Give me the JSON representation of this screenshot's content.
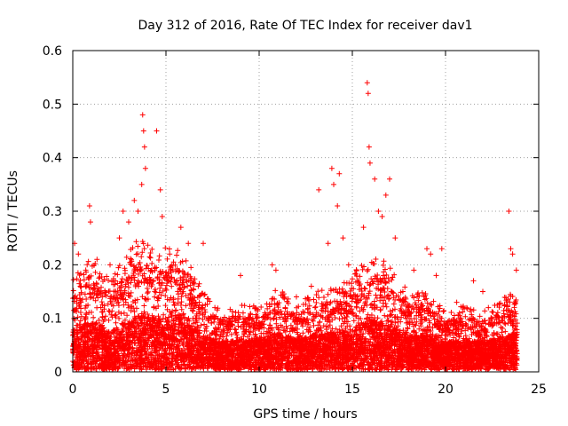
{
  "chart_data": {
    "type": "scatter",
    "title": "Day 312 of 2016, Rate Of TEC Index for receiver dav1",
    "xlabel": "GPS time / hours",
    "ylabel": "ROTI / TECUs",
    "xlim": [
      0,
      25
    ],
    "ylim": [
      0,
      0.6
    ],
    "xticks": [
      0,
      5,
      10,
      15,
      20,
      25
    ],
    "yticks": [
      0,
      0.1,
      0.2,
      0.3,
      0.4,
      0.5,
      0.6
    ],
    "grid": true,
    "marker": "+",
    "marker_color": "#ff0000",
    "frame_color": "#000000",
    "grid_color": "#a0a0a0",
    "series": [
      {
        "name": "dav1 ROTI",
        "points": [
          [
            0.1,
            0.24
          ],
          [
            0.3,
            0.22
          ],
          [
            0.9,
            0.31
          ],
          [
            0.95,
            0.28
          ],
          [
            1.3,
            0.21
          ],
          [
            2.0,
            0.2
          ],
          [
            2.5,
            0.25
          ],
          [
            2.7,
            0.3
          ],
          [
            3.0,
            0.28
          ],
          [
            3.3,
            0.32
          ],
          [
            3.5,
            0.3
          ],
          [
            3.7,
            0.35
          ],
          [
            3.75,
            0.48
          ],
          [
            3.8,
            0.45
          ],
          [
            3.85,
            0.42
          ],
          [
            3.9,
            0.38
          ],
          [
            4.5,
            0.45
          ],
          [
            4.7,
            0.34
          ],
          [
            4.8,
            0.29
          ],
          [
            5.2,
            0.22
          ],
          [
            5.8,
            0.27
          ],
          [
            6.2,
            0.24
          ],
          [
            7.0,
            0.24
          ],
          [
            9.0,
            0.18
          ],
          [
            10.7,
            0.2
          ],
          [
            10.9,
            0.19
          ],
          [
            11.4,
            0.12
          ],
          [
            12.0,
            0.14
          ],
          [
            12.8,
            0.16
          ],
          [
            13.2,
            0.34
          ],
          [
            13.7,
            0.24
          ],
          [
            13.9,
            0.38
          ],
          [
            14.0,
            0.35
          ],
          [
            14.2,
            0.31
          ],
          [
            14.3,
            0.37
          ],
          [
            14.5,
            0.25
          ],
          [
            14.8,
            0.2
          ],
          [
            15.6,
            0.27
          ],
          [
            15.8,
            0.54
          ],
          [
            15.85,
            0.52
          ],
          [
            15.9,
            0.42
          ],
          [
            15.95,
            0.39
          ],
          [
            16.2,
            0.36
          ],
          [
            16.4,
            0.3
          ],
          [
            16.6,
            0.29
          ],
          [
            16.8,
            0.33
          ],
          [
            17.0,
            0.36
          ],
          [
            17.3,
            0.25
          ],
          [
            18.3,
            0.19
          ],
          [
            19.0,
            0.23
          ],
          [
            19.2,
            0.22
          ],
          [
            19.5,
            0.18
          ],
          [
            19.8,
            0.23
          ],
          [
            20.6,
            0.13
          ],
          [
            21.5,
            0.17
          ],
          [
            22.0,
            0.15
          ],
          [
            22.3,
            0.12
          ],
          [
            23.4,
            0.3
          ],
          [
            23.5,
            0.23
          ],
          [
            23.6,
            0.22
          ],
          [
            23.8,
            0.19
          ]
        ]
      }
    ],
    "density_model": {
      "x_range": [
        0,
        23.85
      ],
      "envelope_x": [
        0,
        0.5,
        1,
        2,
        3,
        3.5,
        4,
        4.5,
        5,
        5.5,
        6,
        7,
        8,
        9,
        10,
        11,
        12,
        13,
        14,
        15,
        15.5,
        16,
        16.5,
        17,
        18,
        19,
        20,
        21,
        22,
        23,
        23.85
      ],
      "envelope_y": [
        0.14,
        0.16,
        0.17,
        0.14,
        0.18,
        0.2,
        0.2,
        0.18,
        0.19,
        0.2,
        0.18,
        0.12,
        0.09,
        0.1,
        0.1,
        0.13,
        0.1,
        0.12,
        0.13,
        0.14,
        0.17,
        0.18,
        0.17,
        0.16,
        0.12,
        0.12,
        0.09,
        0.1,
        0.09,
        0.11,
        0.13
      ],
      "base_y": 0.02,
      "points_per_hour": 340,
      "seed": 312
    }
  }
}
